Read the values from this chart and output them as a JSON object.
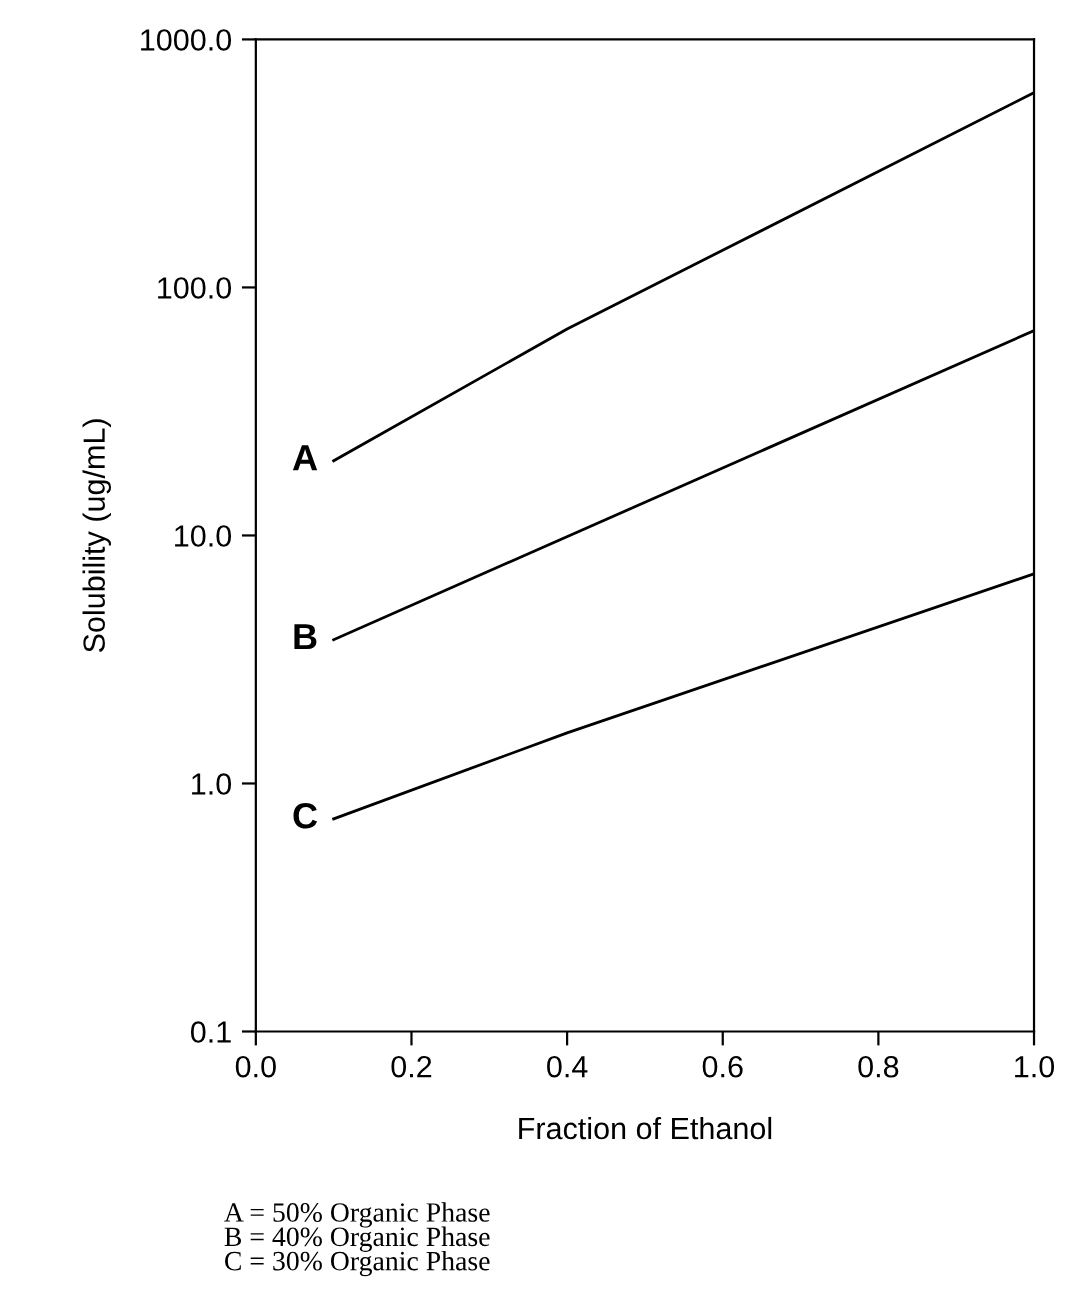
{
  "chart_data": {
    "type": "line",
    "xlabel": "Fraction of Ethanol",
    "ylabel": "Solubility (ug/mL)",
    "log": "y",
    "xlim": [
      0,
      1
    ],
    "ylim": [
      0.1,
      1000
    ],
    "xticks": [
      {
        "value": 0,
        "label": "0.0"
      },
      0.2,
      0.4,
      0.6,
      0.8,
      {
        "value": 1,
        "label": "1.0"
      }
    ],
    "yticks": [
      0.1,
      {
        "value": 1,
        "label": "1.0"
      },
      {
        "value": 10,
        "label": "10.0"
      },
      {
        "value": 100,
        "label": "100.0"
      },
      {
        "value": 1000,
        "label": "1000.0"
      }
    ],
    "grid": false,
    "marker": "none",
    "line_style": "solid",
    "series": [
      {
        "name": "A",
        "color": "#000000",
        "x": [
          0.1,
          0.4,
          1.0
        ],
        "values": [
          20,
          68,
          610
        ]
      },
      {
        "name": "B",
        "color": "#000000",
        "x": [
          0.1,
          1.0
        ],
        "values": [
          3.8,
          67
        ]
      },
      {
        "name": "C",
        "color": "#000000",
        "x": [
          0.1,
          0.4,
          1.0
        ],
        "values": [
          0.72,
          1.6,
          7.0
        ]
      }
    ],
    "annotations": [
      "A = 50% Organic Phase\nB = 40% Organic Phase\nC = 30% Organic Phase"
    ]
  }
}
